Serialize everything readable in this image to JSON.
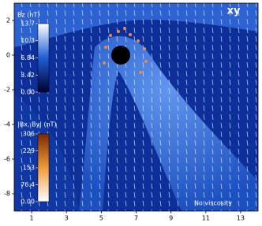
{
  "chart_data": {
    "type": "field",
    "title": "xy",
    "annotation": "No viscosity",
    "xlim": [
      0,
      14
    ],
    "xticks": [
      1,
      3,
      5,
      7,
      9,
      11,
      13
    ],
    "ylim": [
      -9,
      3
    ],
    "yticks": [
      2,
      0,
      -2,
      -4,
      -6,
      -8
    ],
    "colorbars": [
      {
        "label": "Bz (nT)",
        "clim": [
          0,
          13.7
        ],
        "ticks": [
          {
            "value": 0,
            "label": "0.00"
          },
          3.42,
          6.84,
          10.3,
          13.7
        ],
        "colors": [
          "#000030",
          "#1d5fd6",
          "#ffffff"
        ]
      },
      {
        "label": "|Bx, By| (nT)",
        "clim": [
          0,
          306
        ],
        "ticks": [
          {
            "value": 0,
            "label": "0.00"
          },
          76.4,
          153,
          229,
          306
        ],
        "colors": [
          "#ffffff",
          "#f09a3a",
          "#7a2a00"
        ]
      }
    ]
  }
}
